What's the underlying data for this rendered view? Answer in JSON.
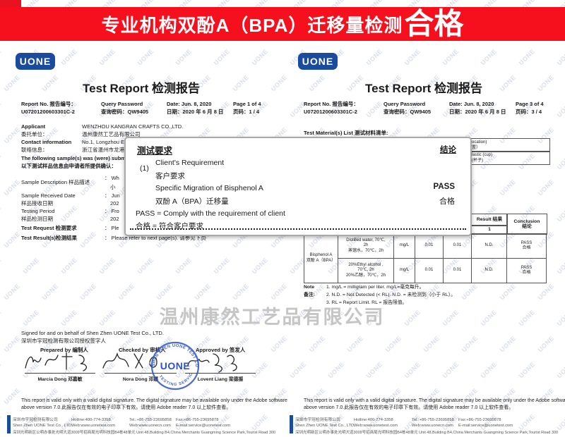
{
  "banner": {
    "prefix": "专业机构双酚A（BPA）迁移量检测",
    "result": "合格"
  },
  "watermark": {
    "logo_text": "UONE",
    "company": "温州康然工艺品有限公司"
  },
  "report": {
    "logo": "UONE",
    "title": "Test Report 检测报告",
    "report_no_label": "Report No. 报告编号：",
    "report_no": "U07201200603301C-2",
    "password_label": "Query Password",
    "password_value": "查询密码：QW9405",
    "date_label": "Date: Jun. 8, 2020",
    "date_value": "日期：2020 年 6 月 8 日"
  },
  "left": {
    "page_label": "Page 1 of 4",
    "page_value": "页码：1 / 4",
    "applicant_label": "Applicant",
    "applicant_label_cn": "委托单位：",
    "applicant_value": "WENZHOU KANGRAN CRAFTS CO.,LTD.",
    "applicant_value_cn": "温州康然工艺品有限公司",
    "contact_label": "Contact information",
    "contact_label_cn": "联络信息：",
    "contact_value": "No.1, Longzhou Ea",
    "contact_value_cn": "浙江省温州市龙港",
    "submitted_en": "The following sample(s) was (were) submitted",
    "submitted_cn": "以下测试样品信息由申请者所提供确认：",
    "rows": [
      {
        "label": "Sample Description 样品描述",
        "v1": "： Wh",
        "v2": "小"
      },
      {
        "label": "Sample Received Date",
        "label2": "样品接收日期",
        "v1": "： Jun",
        "v2": "202"
      },
      {
        "label": "Testing Period",
        "label2": "样品检测日期",
        "v1": "： Fro",
        "v2": "202"
      },
      {
        "label": "Test Request 检测要求",
        "v1": "： Ple"
      },
      {
        "label": "Test Result(s)检测结果",
        "v1": "： Please refer to next page(s). 请参见下页"
      }
    ],
    "sign": {
      "line1": "Signed for and on behalf of Shen Zhen UONE Test Co., LTD.",
      "line2": "深圳市宇冠检测有限公司授权签字人",
      "prepared_label": "Prepared by 编制人",
      "checked_label": "Checked by 审核人",
      "approved_label": "Approved by 签发人",
      "prepared_name": "Marcia Dong 邓嘉敏",
      "checked_name": "Nora Dong 邓娜",
      "approved_name": "Lovent Liang 梁德振",
      "stamp_top": "SHEN ZHEN UONE TEST CO., LTD",
      "stamp_center": "UONE",
      "stamp_bottom": "TESTING SERVICE"
    }
  },
  "right": {
    "page_label": "Page 3 of 4",
    "page_value": "页码：3 / 4",
    "material_list_label": "Test Material(s) List 测试材料清单:",
    "material_fragment": [
      {
        "en": "ocation)",
        "cn": "置）"
      },
      {
        "en": "lastic (cup)",
        "cn": "(杯子)"
      }
    ],
    "result_col_label": "Result 结果",
    "result_col_sub": "1",
    "conclusion_col_label": "Conclusion",
    "conclusion_col_label_cn": "结论",
    "table": {
      "substance_en": "Bisphenol A",
      "substance_cn": "双酚 A（BPA）",
      "rows": [
        {
          "c1": "Distilled water, 70℃,",
          "c2": "2h",
          "c3": "蒸馏水，70℃，2h",
          "unit": "mg/L",
          "rl": "0.01",
          "mdl": "0.01",
          "result": "N.D.",
          "pass_en": "PASS",
          "pass_cn": "合格"
        },
        {
          "c1": "20%Ethyl alcohol ,",
          "c2": "70℃, 2h",
          "c3": "20%乙醇，70℃，2h",
          "unit": "mg/L",
          "rl": "0.01",
          "mdl": "0.01",
          "result": "N.D.",
          "pass_en": "PASS",
          "pass_cn": "合格"
        }
      ]
    },
    "note_label_en": "Note",
    "note_label_cn": "备注:",
    "notes": [
      "1.    mg/L = milligram per liter. mg/L=毫克每升。",
      "2.    N.D. = Not Detected (< RL). N.D. =  未检测到（小于 RL）。",
      "3.    RL = Report Limit. RL =  报告限值。"
    ]
  },
  "overlay": {
    "title": "测试要求",
    "conclusion_label": "结论",
    "index": "(1)",
    "req_en": "Client's Requirement",
    "req_cn": "客户要求",
    "item_en": "Specific Migration of Bisphenol A",
    "item_cn": "双酚 A（BPA）迁移量",
    "pass_en": "PASS",
    "pass_cn": "合格",
    "legend_en": "PASS = Comply with the requirement of client",
    "legend_cn": "合格 = 符合客户要求"
  },
  "disclaimer": {
    "line1": "This report is valid only with a valid digital signature. The digital signature may be available only under the Adobe software",
    "line2": "above version 7.0.此报告仅在有效的电子印章下有效。请使用 Adobe reader 7.0 以上软件查看。"
  },
  "footer": {
    "company_cn": "深圳市宇冠检测有限公司",
    "company_en": "Shen Zhen UONE Test Co., LTD.",
    "hotline": "Hotline:400-774-3358",
    "web1": "Web:www.uonetest.com",
    "tel": "Tel.:+86-755-23695858",
    "web2": "Web:www.uonecn.com",
    "fax": "Fax:+86-755-23695878",
    "email": "E-mail:service@uonetest.com",
    "address": "深圳光明新区公明办事处光明大道3009号招商局光明科技园B4栋48单元 Unit 48,Building B4,China Merchants Guangming Science Park,Tourist Road 3009,Guangming New District,ShenZhen."
  }
}
